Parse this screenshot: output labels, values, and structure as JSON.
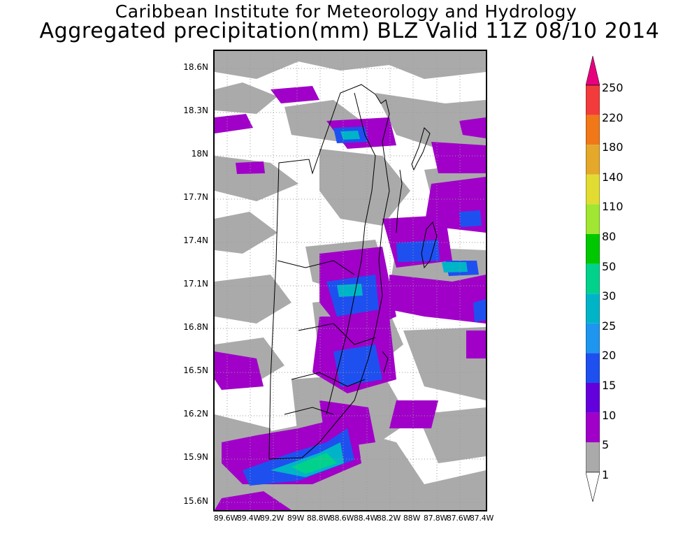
{
  "header": {
    "line1": "Caribbean Institute for Meteorology and Hydrology",
    "line2": "Aggregated precipitation(mm) BLZ Valid 11Z 08/10 2014"
  },
  "map": {
    "lat_labels": [
      "18.6N",
      "18.3N",
      "18N",
      "17.7N",
      "17.4N",
      "17.1N",
      "16.8N",
      "16.5N",
      "16.2N",
      "15.9N",
      "15.6N"
    ],
    "lon_labels": [
      "89.6W",
      "89.4W",
      "89.2W",
      "89W",
      "88.8W",
      "88.6W",
      "88.4W",
      "88.2W",
      "88W",
      "87.8W",
      "87.6W",
      "87.4W"
    ],
    "lat_range": [
      15.55,
      18.7
    ],
    "lon_range": [
      89.7,
      87.37
    ]
  },
  "legend": {
    "levels": [
      "250",
      "220",
      "180",
      "140",
      "110",
      "80",
      "50",
      "30",
      "25",
      "20",
      "15",
      "10",
      "5",
      "1"
    ],
    "colors": [
      "#e6007e",
      "#f23c3c",
      "#f07818",
      "#e4a82a",
      "#e2dc32",
      "#a0e632",
      "#00c800",
      "#00d28c",
      "#00b4c8",
      "#1e96f0",
      "#1e50f0",
      "#6400dc",
      "#a000c8",
      "#aaaaaa"
    ]
  }
}
